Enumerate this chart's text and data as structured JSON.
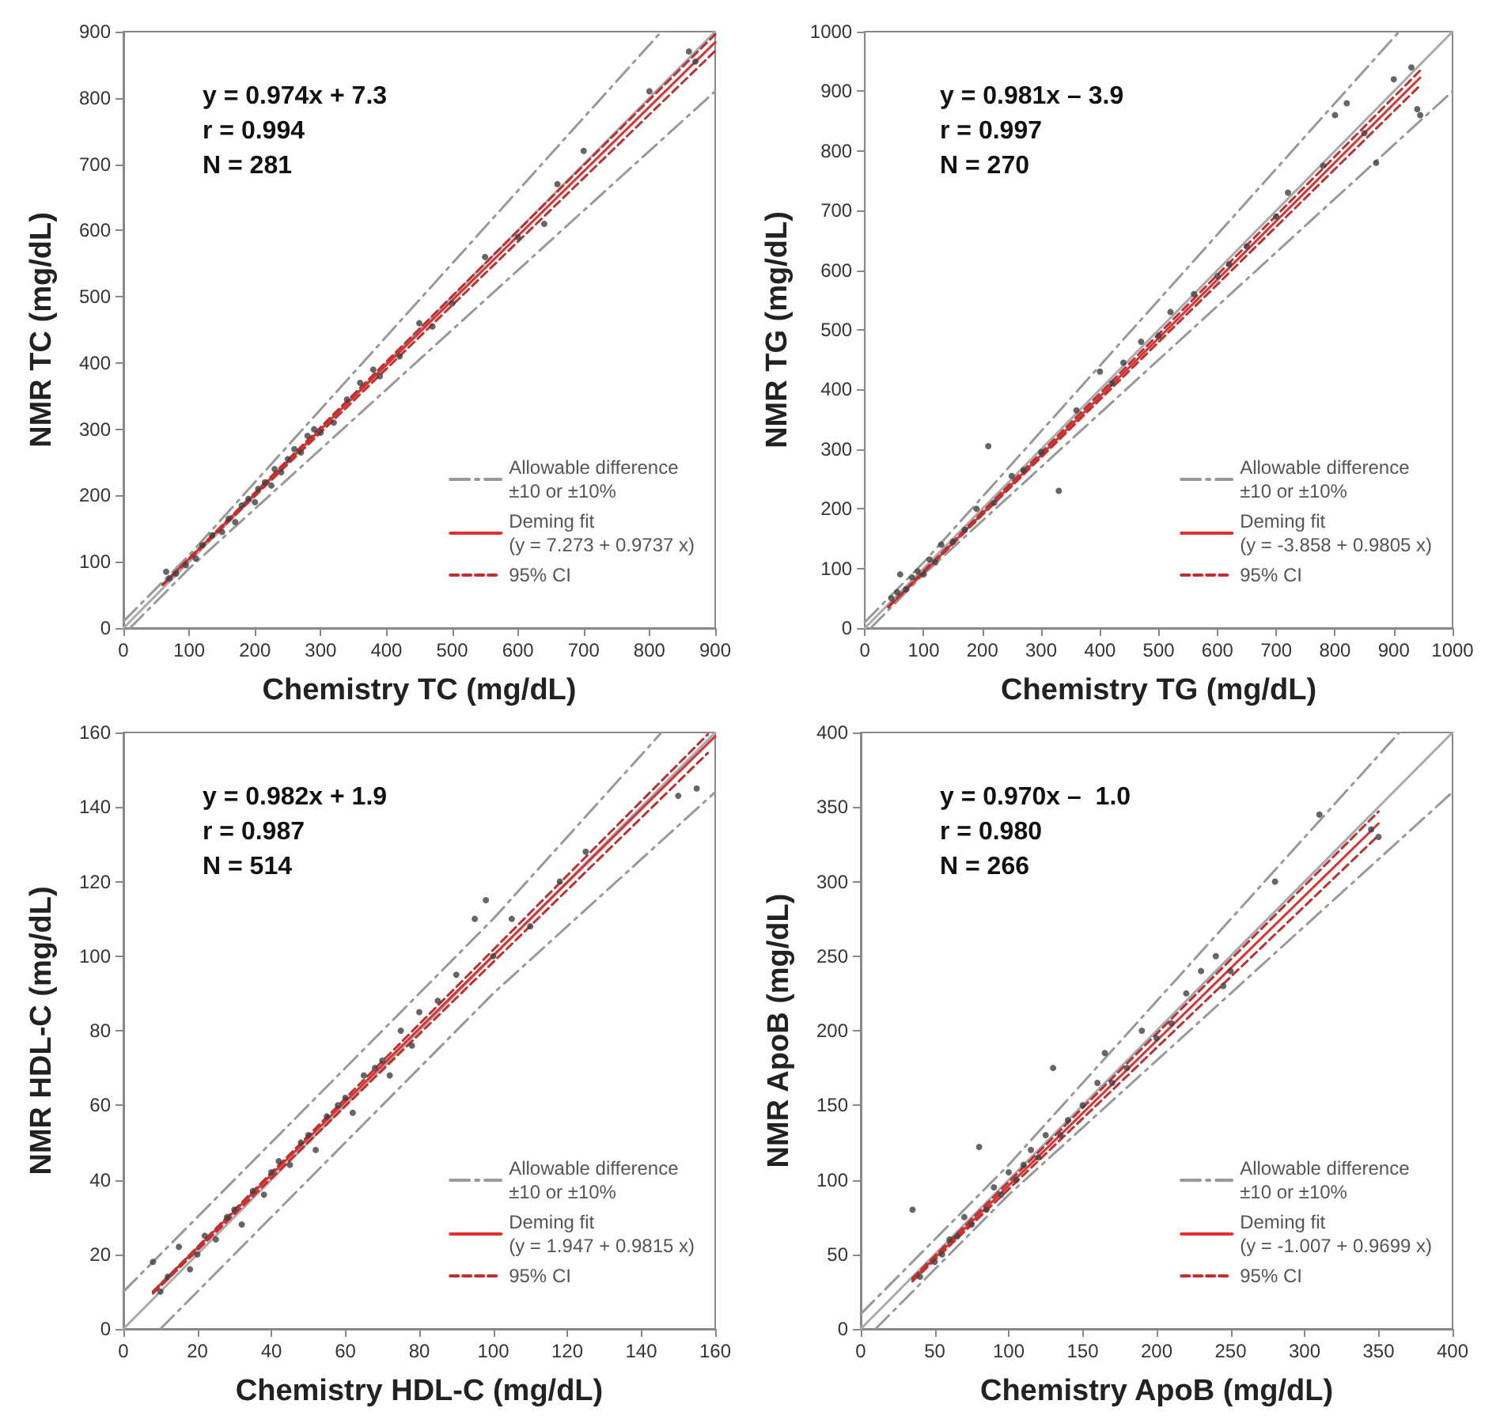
{
  "chart_data": [
    {
      "type": "scatter",
      "xlabel": "Chemistry TC (mg/dL)",
      "ylabel": "NMR TC (mg/dL)",
      "annotations": [
        "y = 0.974x + 7.3",
        "r = 0.994",
        "N = 281"
      ],
      "xlim": [
        0,
        900
      ],
      "ylim": [
        0,
        900
      ],
      "xticks": [
        0,
        100,
        200,
        300,
        400,
        500,
        600,
        700,
        800,
        900
      ],
      "yticks": [
        0,
        100,
        200,
        300,
        400,
        500,
        600,
        700,
        800,
        900
      ],
      "legend": "bottom right",
      "marker": "circle",
      "series": [
        {
          "color": "#404040",
          "x": [
            65,
            70,
            80,
            95,
            110,
            120,
            135,
            150,
            160,
            170,
            180,
            190,
            200,
            205,
            215,
            225,
            230,
            240,
            250,
            260,
            270,
            280,
            290,
            300,
            320,
            340,
            360,
            380,
            390,
            420,
            450,
            470,
            500,
            550,
            600,
            640,
            660,
            700,
            800,
            860,
            870
          ],
          "values": [
            85,
            75,
            82,
            95,
            105,
            125,
            140,
            145,
            165,
            160,
            185,
            195,
            190,
            210,
            220,
            215,
            240,
            235,
            255,
            270,
            265,
            290,
            300,
            295,
            310,
            345,
            370,
            390,
            380,
            410,
            460,
            455,
            490,
            560,
            590,
            610,
            670,
            720,
            810,
            870,
            855
          ]
        },
        {
          "type": "line",
          "marker": "none",
          "color": "#aaaaaa",
          "line_style": "solid",
          "x": [
            0,
            900
          ],
          "values": [
            0,
            900
          ]
        },
        {
          "type": "line",
          "marker": "none",
          "name": "Allowable difference\n±10 or ±10%",
          "color": "#999999",
          "line_style": "dashdot",
          "x": [
            0,
            100,
            818
          ],
          "values": [
            10,
            110,
            900
          ]
        },
        {
          "type": "line",
          "marker": "none",
          "color": "#999999",
          "line_style": "dashdot",
          "x": [
            10,
            100,
            900
          ],
          "values": [
            0,
            90,
            810
          ]
        },
        {
          "type": "line",
          "marker": "none",
          "name": "Deming fit\n(y = 7.273 + 0.9737 x)",
          "color": "#e03030",
          "line_style": "solid",
          "x": [
            60,
            900
          ],
          "values": [
            66,
            884
          ]
        },
        {
          "type": "line",
          "marker": "none",
          "name": "95% CI",
          "color": "#c03030",
          "line_style": "dashed",
          "x": [
            60,
            900
          ],
          "values": [
            66,
            896
          ]
        },
        {
          "type": "line",
          "marker": "none",
          "color": "#c03030",
          "line_style": "dashed",
          "x": [
            60,
            900
          ],
          "values": [
            65,
            871
          ]
        }
      ]
    },
    {
      "type": "scatter",
      "xlabel": "Chemistry TG (mg/dL)",
      "ylabel": "NMR TG (mg/dL)",
      "annotations": [
        "y = 0.981x – 3.9",
        "r = 0.997",
        "N = 270"
      ],
      "xlim": [
        0,
        1000
      ],
      "ylim": [
        0,
        1000
      ],
      "xticks": [
        0,
        100,
        200,
        300,
        400,
        500,
        600,
        700,
        800,
        900,
        1000
      ],
      "yticks": [
        0,
        100,
        200,
        300,
        400,
        500,
        600,
        700,
        800,
        900,
        1000
      ],
      "legend": "bottom right",
      "marker": "circle",
      "series": [
        {
          "color": "#404040",
          "x": [
            45,
            55,
            60,
            70,
            80,
            90,
            100,
            110,
            120,
            130,
            150,
            170,
            190,
            210,
            220,
            250,
            270,
            300,
            330,
            360,
            400,
            420,
            440,
            470,
            500,
            520,
            560,
            600,
            620,
            650,
            700,
            720,
            780,
            800,
            820,
            850,
            870,
            900,
            930,
            940,
            945
          ],
          "values": [
            50,
            60,
            90,
            65,
            85,
            95,
            90,
            115,
            110,
            140,
            145,
            165,
            200,
            305,
            210,
            255,
            265,
            295,
            230,
            365,
            430,
            410,
            445,
            480,
            490,
            530,
            560,
            590,
            610,
            640,
            690,
            730,
            775,
            860,
            880,
            830,
            780,
            920,
            940,
            870,
            860
          ]
        },
        {
          "type": "line",
          "marker": "none",
          "color": "#aaaaaa",
          "line_style": "solid",
          "x": [
            0,
            1000
          ],
          "values": [
            0,
            1000
          ]
        },
        {
          "type": "line",
          "marker": "none",
          "name": "Allowable difference\n±10 or ±10%",
          "color": "#999999",
          "line_style": "dashdot",
          "x": [
            0,
            100,
            909
          ],
          "values": [
            10,
            110,
            1000
          ]
        },
        {
          "type": "line",
          "marker": "none",
          "color": "#999999",
          "line_style": "dashdot",
          "x": [
            10,
            100,
            1000
          ],
          "values": [
            0,
            90,
            900
          ]
        },
        {
          "type": "line",
          "marker": "none",
          "name": "Deming fit\n(y = -3.858 + 0.9805 x)",
          "color": "#e03030",
          "line_style": "solid",
          "x": [
            40,
            945
          ],
          "values": [
            35,
            923
          ]
        },
        {
          "type": "line",
          "marker": "none",
          "name": "95% CI",
          "color": "#c03030",
          "line_style": "dashed",
          "x": [
            40,
            945
          ],
          "values": [
            36,
            935
          ]
        },
        {
          "type": "line",
          "marker": "none",
          "color": "#c03030",
          "line_style": "dashed",
          "x": [
            40,
            945
          ],
          "values": [
            35,
            910
          ]
        }
      ]
    },
    {
      "type": "scatter",
      "xlabel": "Chemistry HDL-C (mg/dL)",
      "ylabel": "NMR HDL-C (mg/dL)",
      "annotations": [
        "y = 0.982x + 1.9",
        "r = 0.987",
        "N = 514"
      ],
      "xlim": [
        0,
        160
      ],
      "ylim": [
        0,
        160
      ],
      "xticks": [
        0,
        20,
        40,
        60,
        80,
        100,
        120,
        140,
        160
      ],
      "yticks": [
        0,
        20,
        40,
        60,
        80,
        100,
        120,
        140,
        160
      ],
      "legend": "bottom right",
      "marker": "circle",
      "series": [
        {
          "color": "#404040",
          "x": [
            8,
            10,
            12,
            15,
            18,
            20,
            22,
            25,
            28,
            30,
            32,
            35,
            38,
            40,
            42,
            45,
            48,
            50,
            52,
            55,
            58,
            60,
            62,
            65,
            68,
            70,
            72,
            75,
            78,
            80,
            85,
            90,
            95,
            98,
            100,
            105,
            110,
            118,
            125,
            150,
            155
          ],
          "values": [
            18,
            10,
            14,
            22,
            16,
            20,
            25,
            24,
            30,
            32,
            28,
            37,
            36,
            42,
            45,
            44,
            50,
            52,
            48,
            57,
            60,
            62,
            58,
            68,
            70,
            72,
            68,
            80,
            76,
            85,
            88,
            95,
            110,
            115,
            100,
            110,
            108,
            120,
            128,
            143,
            145
          ]
        },
        {
          "type": "line",
          "marker": "none",
          "color": "#aaaaaa",
          "line_style": "solid",
          "x": [
            0,
            160
          ],
          "values": [
            0,
            160
          ]
        },
        {
          "type": "line",
          "marker": "none",
          "name": "Allowable difference\n±10 or ±10%",
          "color": "#999999",
          "line_style": "dashdot",
          "x": [
            0,
            100,
            145.5
          ],
          "values": [
            10,
            110,
            160
          ]
        },
        {
          "type": "line",
          "marker": "none",
          "color": "#999999",
          "line_style": "dashdot",
          "x": [
            10,
            100,
            160
          ],
          "values": [
            0,
            90,
            144
          ]
        },
        {
          "type": "line",
          "marker": "none",
          "name": "Deming fit\n(y = 1.947 + 0.9815 x)",
          "color": "#e03030",
          "line_style": "solid",
          "x": [
            8,
            160
          ],
          "values": [
            10,
            159
          ]
        },
        {
          "type": "line",
          "marker": "none",
          "name": "95% CI",
          "color": "#c03030",
          "line_style": "dashed",
          "x": [
            8,
            158
          ],
          "values": [
            10,
            159.5
          ]
        },
        {
          "type": "line",
          "marker": "none",
          "color": "#c03030",
          "line_style": "dashed",
          "x": [
            8,
            158
          ],
          "values": [
            9.5,
            154.5
          ]
        }
      ]
    },
    {
      "type": "scatter",
      "xlabel": "Chemistry ApoB (mg/dL)",
      "ylabel": "NMR ApoB (mg/dL)",
      "annotations": [
        "y = 0.970x –  1.0",
        "r = 0.980",
        "N = 266"
      ],
      "xlim": [
        0,
        400
      ],
      "ylim": [
        0,
        400
      ],
      "xticks": [
        0,
        50,
        100,
        150,
        200,
        250,
        300,
        350,
        400
      ],
      "yticks": [
        0,
        50,
        100,
        150,
        200,
        250,
        300,
        350,
        400
      ],
      "legend": "bottom right",
      "marker": "circle",
      "series": [
        {
          "color": "#404040",
          "x": [
            35,
            40,
            50,
            55,
            60,
            65,
            70,
            75,
            80,
            85,
            90,
            95,
            100,
            105,
            110,
            115,
            120,
            125,
            130,
            135,
            140,
            150,
            160,
            165,
            170,
            180,
            190,
            200,
            210,
            220,
            230,
            240,
            245,
            250,
            280,
            310,
            345,
            350
          ],
          "values": [
            80,
            35,
            45,
            50,
            60,
            62,
            75,
            70,
            122,
            80,
            95,
            90,
            105,
            100,
            110,
            120,
            115,
            130,
            175,
            130,
            140,
            150,
            165,
            185,
            165,
            175,
            200,
            195,
            205,
            225,
            240,
            250,
            230,
            240,
            300,
            345,
            335,
            330
          ]
        },
        {
          "type": "line",
          "marker": "none",
          "color": "#aaaaaa",
          "line_style": "solid",
          "x": [
            0,
            400
          ],
          "values": [
            0,
            400
          ]
        },
        {
          "type": "line",
          "marker": "none",
          "name": "Allowable difference\n±10 or ±10%",
          "color": "#999999",
          "line_style": "dashdot",
          "x": [
            0,
            100,
            364
          ],
          "values": [
            10,
            110,
            400
          ]
        },
        {
          "type": "line",
          "marker": "none",
          "color": "#999999",
          "line_style": "dashdot",
          "x": [
            10,
            100,
            400
          ],
          "values": [
            0,
            90,
            360
          ]
        },
        {
          "type": "line",
          "marker": "none",
          "name": "Deming fit\n(y = -1.007 + 0.9699 x)",
          "color": "#e03030",
          "line_style": "solid",
          "x": [
            35,
            350
          ],
          "values": [
            33,
            339
          ]
        },
        {
          "type": "line",
          "marker": "none",
          "name": "95% CI",
          "color": "#c03030",
          "line_style": "dashed",
          "x": [
            35,
            350
          ],
          "values": [
            34,
            347
          ]
        },
        {
          "type": "line",
          "marker": "none",
          "color": "#c03030",
          "line_style": "dashed",
          "x": [
            35,
            350
          ],
          "values": [
            32,
            331
          ]
        }
      ]
    }
  ]
}
